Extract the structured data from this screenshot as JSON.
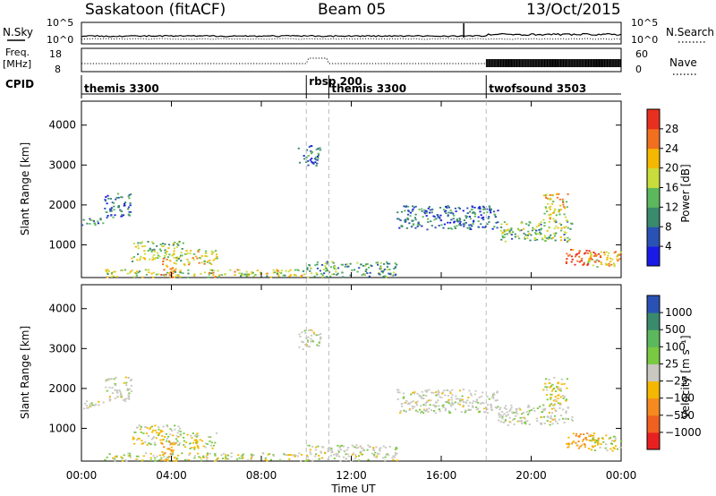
{
  "header": {
    "station": "Saskatoon (fitACF)",
    "beam": "Beam 05",
    "date": "13/Oct/2015"
  },
  "top_panels": {
    "nsky_label": "N.Sky",
    "nsky_ticks": [
      "10^5",
      "10^0"
    ],
    "nsearch_label": "N.Search",
    "nsearch_ticks": [
      "10^5",
      "10^0"
    ],
    "freq_label": "Freq.",
    "freq_unit": "[MHz]",
    "freq_ticks": [
      "18",
      "8"
    ],
    "nave_label": "Nave",
    "nave_ticks": [
      "60",
      "0"
    ],
    "cpid_label": "CPID"
  },
  "cpid_segments": [
    {
      "name": "themis 3300",
      "start": 0
    },
    {
      "name": "rbsp 200",
      "start": 10
    },
    {
      "name": "themis 3300",
      "start": 11
    },
    {
      "name": "twofsound 3503",
      "start": 18
    }
  ],
  "axes": {
    "x_label": "Time UT",
    "x_ticks": [
      "00:00",
      "04:00",
      "08:00",
      "12:00",
      "16:00",
      "20:00",
      "00:00"
    ],
    "y_label": "Slant Range [km]",
    "y_ticks": [
      "1000",
      "2000",
      "3000",
      "4000"
    ]
  },
  "power_colorbar": {
    "label": "Power [dB]",
    "ticks": [
      "4",
      "8",
      "12",
      "16",
      "20",
      "24",
      "28"
    ],
    "colors": [
      "#1a1ae6",
      "#2a52b4",
      "#3a8a6e",
      "#5cb85c",
      "#c8dc3c",
      "#f5b800",
      "#f07020",
      "#e83020"
    ]
  },
  "velocity_colorbar": {
    "label": "Velocity [m s⁻¹]",
    "ticks": [
      "1000",
      "500",
      "100",
      "25",
      "−25",
      "−100",
      "−500",
      "−1000"
    ],
    "colors": [
      "#2a52b4",
      "#3a8a6e",
      "#5cb85c",
      "#7ac943",
      "#c8c8c0",
      "#f5b800",
      "#f58a20",
      "#f06020",
      "#e82020"
    ]
  },
  "chart_data": {
    "type": "heatmap",
    "title": "Saskatoon (fitACF) Beam 05 13/Oct/2015",
    "xlabel": "Time UT",
    "ylabel": "Slant Range [km]",
    "xlim": [
      0,
      24
    ],
    "ylim": [
      180,
      4600
    ],
    "grid": false,
    "echo_bands": [
      {
        "t": [
          0.0,
          1.0
        ],
        "range": [
          1500,
          1700
        ],
        "power": 10
      },
      {
        "t": [
          1.0,
          2.2
        ],
        "range": [
          1700,
          2300
        ],
        "power": 8
      },
      {
        "t": [
          2.2,
          4.5
        ],
        "range": [
          600,
          1100
        ],
        "power": 16
      },
      {
        "t": [
          3.5,
          4.2
        ],
        "range": [
          200,
          700
        ],
        "power": 26
      },
      {
        "t": [
          4.5,
          6.0
        ],
        "range": [
          500,
          900
        ],
        "power": 20
      },
      {
        "t": [
          1.0,
          10.0
        ],
        "range": [
          200,
          400
        ],
        "power": 18
      },
      {
        "t": [
          9.6,
          10.6
        ],
        "range": [
          3000,
          3500
        ],
        "power": 8
      },
      {
        "t": [
          10.0,
          14.0
        ],
        "range": [
          200,
          600
        ],
        "power": 12
      },
      {
        "t": [
          14.0,
          18.5
        ],
        "range": [
          1400,
          2000
        ],
        "power": 8
      },
      {
        "t": [
          18.5,
          21.8
        ],
        "range": [
          1100,
          1600
        ],
        "power": 14
      },
      {
        "t": [
          20.5,
          21.6
        ],
        "range": [
          1600,
          2300
        ],
        "power": 20
      },
      {
        "t": [
          21.5,
          23.0
        ],
        "range": [
          500,
          900
        ],
        "power": 28
      },
      {
        "t": [
          22.5,
          24.0
        ],
        "range": [
          450,
          850
        ],
        "power": 22
      }
    ]
  }
}
